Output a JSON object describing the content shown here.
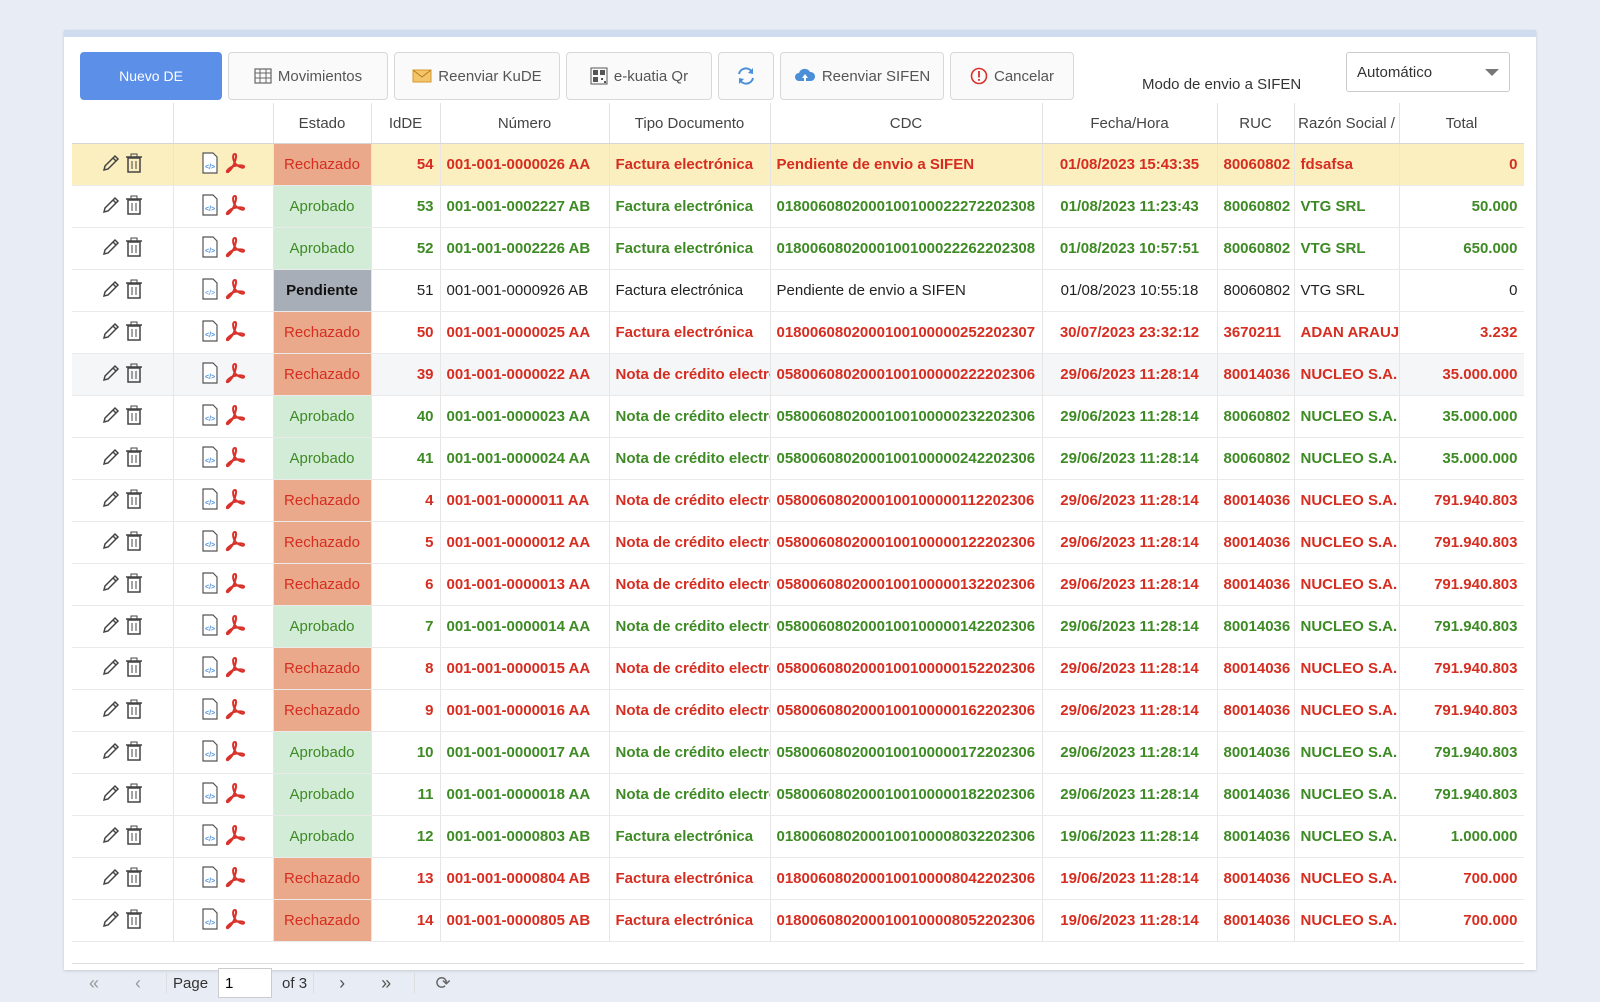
{
  "toolbar": {
    "nuevo": "Nuevo DE",
    "movimientos": "Movimientos",
    "reenviar_kude": "Reenviar KuDE",
    "ekuatia": "e-kuatia Qr",
    "reenviar_sifen": "Reenviar SIFEN",
    "cancelar": "Cancelar",
    "mode_label": "Modo de envio a SIFEN",
    "mode_value": "Automático"
  },
  "columns": [
    "",
    "",
    "Estado",
    "IdDE",
    "Número",
    "Tipo Documento",
    "CDC",
    "Fecha/Hora",
    "RUC",
    "Razón Social /",
    "Total"
  ],
  "rows": [
    {
      "estado": "Rechazado",
      "id": "54",
      "numero": "001-001-0000026 AA",
      "tipo": "Factura electrónica",
      "cdc": "Pendiente de envio a SIFEN",
      "fecha": "01/08/2023 15:43:35",
      "ruc": "80060802",
      "razon": "fdsafsa",
      "total": "0",
      "status": "rej"
    },
    {
      "estado": "Aprobado",
      "id": "53",
      "numero": "001-001-0002227 AB",
      "tipo": "Factura electrónica",
      "cdc": "0180060802000100100022272202308",
      "fecha": "01/08/2023 11:23:43",
      "ruc": "80060802",
      "razon": "VTG SRL",
      "total": "50.000",
      "status": "apr"
    },
    {
      "estado": "Aprobado",
      "id": "52",
      "numero": "001-001-0002226 AB",
      "tipo": "Factura electrónica",
      "cdc": "0180060802000100100022262202308",
      "fecha": "01/08/2023 10:57:51",
      "ruc": "80060802",
      "razon": "VTG SRL",
      "total": "650.000",
      "status": "apr"
    },
    {
      "estado": "Pendiente",
      "id": "51",
      "numero": "001-001-0000926 AB",
      "tipo": "Factura electrónica",
      "cdc": "Pendiente de envio a SIFEN",
      "fecha": "01/08/2023 10:55:18",
      "ruc": "80060802",
      "razon": "VTG SRL",
      "total": "0",
      "status": "pen"
    },
    {
      "estado": "Rechazado",
      "id": "50",
      "numero": "001-001-0000025 AA",
      "tipo": "Factura electrónica",
      "cdc": "0180060802000100100000252202307",
      "fecha": "30/07/2023 23:32:12",
      "ruc": "3670211",
      "razon": "ADAN ARAUJO",
      "total": "3.232",
      "status": "rej"
    },
    {
      "estado": "Rechazado",
      "id": "39",
      "numero": "001-001-0000022 AA",
      "tipo": "Nota de crédito electrónica",
      "cdc": "0580060802000100100000222202306",
      "fecha": "29/06/2023 11:28:14",
      "ruc": "80014036",
      "razon": "NUCLEO S.A.",
      "total": "35.000.000",
      "status": "rej"
    },
    {
      "estado": "Aprobado",
      "id": "40",
      "numero": "001-001-0000023 AA",
      "tipo": "Nota de crédito electrónica",
      "cdc": "0580060802000100100000232202306",
      "fecha": "29/06/2023 11:28:14",
      "ruc": "80060802",
      "razon": "NUCLEO S.A.",
      "total": "35.000.000",
      "status": "apr"
    },
    {
      "estado": "Aprobado",
      "id": "41",
      "numero": "001-001-0000024 AA",
      "tipo": "Nota de crédito electrónica",
      "cdc": "0580060802000100100000242202306",
      "fecha": "29/06/2023 11:28:14",
      "ruc": "80060802",
      "razon": "NUCLEO S.A.",
      "total": "35.000.000",
      "status": "apr"
    },
    {
      "estado": "Rechazado",
      "id": "4",
      "numero": "001-001-0000011 AA",
      "tipo": "Nota de crédito electrónica",
      "cdc": "0580060802000100100000112202306",
      "fecha": "29/06/2023 11:28:14",
      "ruc": "80014036",
      "razon": "NUCLEO S.A.",
      "total": "791.940.803",
      "status": "rej"
    },
    {
      "estado": "Rechazado",
      "id": "5",
      "numero": "001-001-0000012 AA",
      "tipo": "Nota de crédito electrónica",
      "cdc": "0580060802000100100000122202306",
      "fecha": "29/06/2023 11:28:14",
      "ruc": "80014036",
      "razon": "NUCLEO S.A.",
      "total": "791.940.803",
      "status": "rej"
    },
    {
      "estado": "Rechazado",
      "id": "6",
      "numero": "001-001-0000013 AA",
      "tipo": "Nota de crédito electrónica",
      "cdc": "0580060802000100100000132202306",
      "fecha": "29/06/2023 11:28:14",
      "ruc": "80014036",
      "razon": "NUCLEO S.A.",
      "total": "791.940.803",
      "status": "rej"
    },
    {
      "estado": "Aprobado",
      "id": "7",
      "numero": "001-001-0000014 AA",
      "tipo": "Nota de crédito electrónica",
      "cdc": "0580060802000100100000142202306",
      "fecha": "29/06/2023 11:28:14",
      "ruc": "80014036",
      "razon": "NUCLEO S.A.",
      "total": "791.940.803",
      "status": "apr"
    },
    {
      "estado": "Rechazado",
      "id": "8",
      "numero": "001-001-0000015 AA",
      "tipo": "Nota de crédito electrónica",
      "cdc": "0580060802000100100000152202306",
      "fecha": "29/06/2023 11:28:14",
      "ruc": "80014036",
      "razon": "NUCLEO S.A.",
      "total": "791.940.803",
      "status": "rej"
    },
    {
      "estado": "Rechazado",
      "id": "9",
      "numero": "001-001-0000016 AA",
      "tipo": "Nota de crédito electrónica",
      "cdc": "0580060802000100100000162202306",
      "fecha": "29/06/2023 11:28:14",
      "ruc": "80014036",
      "razon": "NUCLEO S.A.",
      "total": "791.940.803",
      "status": "rej"
    },
    {
      "estado": "Aprobado",
      "id": "10",
      "numero": "001-001-0000017 AA",
      "tipo": "Nota de crédito electrónica",
      "cdc": "0580060802000100100000172202306",
      "fecha": "29/06/2023 11:28:14",
      "ruc": "80014036",
      "razon": "NUCLEO S.A.",
      "total": "791.940.803",
      "status": "apr"
    },
    {
      "estado": "Aprobado",
      "id": "11",
      "numero": "001-001-0000018 AA",
      "tipo": "Nota de crédito electrónica",
      "cdc": "0580060802000100100000182202306",
      "fecha": "29/06/2023 11:28:14",
      "ruc": "80014036",
      "razon": "NUCLEO S.A.",
      "total": "791.940.803",
      "status": "apr"
    },
    {
      "estado": "Aprobado",
      "id": "12",
      "numero": "001-001-0000803 AB",
      "tipo": "Factura electrónica",
      "cdc": "0180060802000100100008032202306",
      "fecha": "19/06/2023 11:28:14",
      "ruc": "80014036",
      "razon": "NUCLEO S.A.",
      "total": "1.000.000",
      "status": "apr"
    },
    {
      "estado": "Rechazado",
      "id": "13",
      "numero": "001-001-0000804 AB",
      "tipo": "Factura electrónica",
      "cdc": "0180060802000100100008042202306",
      "fecha": "19/06/2023 11:28:14",
      "ruc": "80014036",
      "razon": "NUCLEO S.A.",
      "total": "700.000",
      "status": "rej"
    },
    {
      "estado": "Rechazado",
      "id": "14",
      "numero": "001-001-0000805 AB",
      "tipo": "Factura electrónica",
      "cdc": "0180060802000100100008052202306",
      "fecha": "19/06/2023 11:28:14",
      "ruc": "80014036",
      "razon": "NUCLEO S.A.",
      "total": "700.000",
      "status": "rej"
    }
  ],
  "pager": {
    "page_label": "Page",
    "page_value": "1",
    "of_label": "of 3"
  },
  "colors": {
    "primary": "#5b8fe8",
    "rejected": "#d62d20",
    "approved": "#3e8a24",
    "rejected_bg": "#e9a98a",
    "approved_bg": "#d2ecd8",
    "pending_bg": "#a8aeb7",
    "selected_row": "#fbefc0"
  },
  "icons": [
    "edit-icon",
    "trash-icon",
    "xml-file-icon",
    "pdf-icon",
    "grid-icon",
    "mail-icon",
    "qr-icon",
    "refresh-icon",
    "cloud-upload-icon",
    "alert-icon"
  ]
}
